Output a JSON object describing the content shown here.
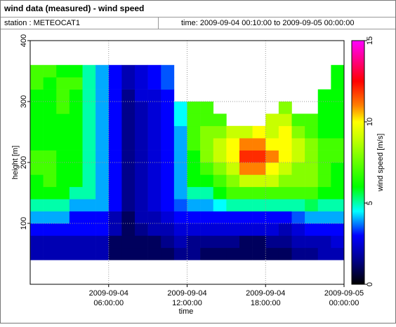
{
  "chart_data": {
    "type": "heatmap",
    "title": "wind data (measured) - wind speed",
    "station": "station : METEOCAT1",
    "time_range": "time: 2009-09-04 00:10:00 to 2009-09-05 00:00:00",
    "xlabel": "time",
    "ylabel": "height [m]",
    "zlabel": "wind speed [m/s]",
    "xlim": [
      0,
      24
    ],
    "xticks": [
      {
        "value": 6,
        "label": "2009-09-04 06:00:00"
      },
      {
        "value": 12,
        "label": "2009-09-04 12:00:00"
      },
      {
        "value": 18,
        "label": "2009-09-04 18:00:00"
      },
      {
        "value": 24,
        "label": "2009-09-05 00:00:00"
      }
    ],
    "ylim": [
      0,
      400
    ],
    "yticks": [
      100,
      200,
      300,
      400
    ],
    "zlim": [
      0,
      15
    ],
    "zticks": [
      0,
      5,
      10,
      15
    ],
    "grid": true,
    "colorscale": [
      [
        0,
        "#000000"
      ],
      [
        1.5,
        "#00008b"
      ],
      [
        3,
        "#0000ff"
      ],
      [
        4.5,
        "#00ffff"
      ],
      [
        6,
        "#00ff00"
      ],
      [
        9,
        "#c8ff00"
      ],
      [
        10,
        "#ffff00"
      ],
      [
        11,
        "#ff8000"
      ],
      [
        12.5,
        "#ff0000"
      ],
      [
        15,
        "#ff00ff"
      ]
    ],
    "x": [
      0.5,
      1.5,
      2.5,
      3.5,
      4.5,
      5.5,
      6.5,
      7.5,
      8.5,
      9.5,
      10.5,
      11.5,
      12.5,
      13.5,
      14.5,
      15.5,
      16.5,
      17.5,
      18.5,
      19.5,
      20.5,
      21.5,
      22.5,
      23.5
    ],
    "y": [
      50,
      70,
      90,
      110,
      130,
      150,
      170,
      190,
      210,
      230,
      250,
      270,
      290,
      310,
      330,
      350
    ],
    "z": [
      [
        2,
        2,
        2,
        2,
        2,
        2,
        1,
        1,
        1,
        1,
        1,
        1.5,
        1.5,
        1,
        1,
        1,
        1,
        1,
        1,
        1,
        1.5,
        1.5,
        2,
        2
      ],
      [
        2,
        2,
        2,
        2,
        2,
        2,
        1,
        1,
        1,
        1,
        1.5,
        2,
        1.5,
        1.5,
        1.5,
        1.5,
        1,
        1,
        1.5,
        1.5,
        2,
        2,
        2,
        2.5
      ],
      [
        3,
        3,
        3,
        3,
        3,
        3,
        2,
        1,
        1.5,
        2,
        2,
        2.5,
        2.5,
        2.5,
        2.5,
        2.5,
        2.5,
        2.5,
        2.5,
        2,
        2.5,
        3,
        3,
        3
      ],
      [
        4,
        4,
        4,
        3,
        3,
        3,
        2,
        1,
        2,
        2,
        2.5,
        3,
        3,
        3,
        3,
        3,
        3,
        3,
        3,
        3,
        3.5,
        4,
        4,
        4
      ],
      [
        5,
        5,
        5,
        4,
        4,
        4,
        3,
        1.5,
        2,
        2.5,
        3,
        3.5,
        4,
        4,
        4.5,
        5,
        5,
        5,
        5,
        5,
        5,
        5.5,
        5,
        5
      ],
      [
        6,
        6,
        6,
        5,
        5,
        4,
        3,
        1.5,
        2,
        2.5,
        3,
        4,
        5,
        5,
        6,
        7,
        7,
        7,
        7,
        7,
        7,
        7,
        6,
        6
      ],
      [
        6,
        7,
        6,
        6,
        5,
        4,
        3,
        1.5,
        2,
        2.5,
        3,
        4,
        6,
        6,
        7,
        8,
        9,
        9,
        9,
        8,
        8,
        8,
        7,
        6
      ],
      [
        7,
        7,
        6,
        6,
        5,
        4,
        3,
        1.5,
        2,
        2.5,
        3,
        4,
        6,
        7,
        8,
        9,
        11,
        11,
        10,
        9,
        8,
        8,
        7,
        6
      ],
      [
        7,
        7,
        6,
        6,
        5,
        4,
        3,
        1.5,
        2,
        2.5,
        3,
        4,
        6,
        8,
        9,
        10,
        12,
        12,
        11,
        10,
        9,
        8,
        7,
        7
      ],
      [
        6,
        6,
        6,
        6,
        5,
        4,
        3,
        1.5,
        2,
        2.5,
        3,
        4,
        7,
        8,
        9,
        10,
        11,
        11,
        10,
        10,
        9,
        8,
        7,
        7
      ],
      [
        6,
        6,
        6,
        6,
        5,
        4,
        3,
        1.5,
        2,
        2.5,
        3,
        4,
        7,
        8,
        8,
        9,
        9,
        10,
        9,
        10,
        8,
        7,
        6,
        6
      ],
      [
        6,
        6,
        6,
        6,
        5,
        4,
        3,
        1.5,
        2,
        2.5,
        3,
        4.5,
        7,
        7,
        7,
        null,
        null,
        null,
        9,
        9,
        7,
        7,
        6,
        6
      ],
      [
        6,
        6,
        7,
        6,
        5,
        4,
        3,
        1.5,
        2,
        2.5,
        3,
        4.5,
        7,
        7,
        null,
        null,
        null,
        null,
        null,
        8,
        null,
        null,
        6,
        6
      ],
      [
        6,
        6,
        7,
        6,
        5,
        4,
        3,
        1.5,
        2.5,
        2.5,
        3,
        null,
        null,
        null,
        null,
        null,
        null,
        null,
        null,
        null,
        null,
        null,
        6,
        6
      ],
      [
        7,
        6,
        7,
        7,
        5,
        4,
        3,
        2,
        2.5,
        3,
        3.5,
        null,
        null,
        null,
        null,
        null,
        null,
        null,
        null,
        null,
        null,
        null,
        null,
        6
      ],
      [
        7,
        7,
        6,
        6,
        5,
        4,
        3,
        2,
        2.5,
        3,
        3.5,
        null,
        null,
        null,
        null,
        null,
        null,
        null,
        null,
        null,
        null,
        null,
        null,
        6
      ]
    ]
  }
}
